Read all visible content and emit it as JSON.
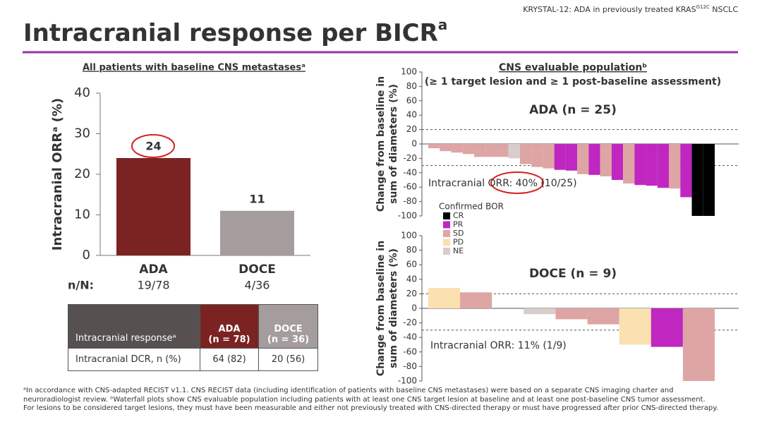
{
  "header": {
    "topline": [
      "KRYSTAL-12: ADA in previously treated KRAS",
      "G12C",
      " NSCLC"
    ],
    "title": "Intracranial response per BICR",
    "title_sup": "a"
  },
  "right_panel": {
    "heading": "CNS evaluable populationᵇ",
    "subheading": "(≥ 1 target lesion and ≥ 1 post-baseline assessment)"
  },
  "chart_data": [
    {
      "type": "bar",
      "title": "All patients with baseline CNS metastasesᵃ",
      "ylabel": "Intracranial ORRᵃ (%)",
      "categories": [
        "ADA",
        "DOCE"
      ],
      "values": [
        24,
        11
      ],
      "colors": [
        "#7b2323",
        "#a59d9d"
      ],
      "ylim": [
        0,
        40
      ],
      "yticks": [
        0,
        10,
        20,
        30,
        40
      ],
      "row_label": "n/N:",
      "row_values": [
        "19/78",
        "4/36"
      ]
    },
    {
      "type": "waterfall",
      "title": "ADA (n = 25)",
      "title_color": "#7b2323",
      "ylabel": [
        "Change from baseline in",
        "sum of diameters (%)"
      ],
      "ylim": [
        -100,
        100
      ],
      "yticks": [
        -100,
        -80,
        -60,
        -40,
        -20,
        0,
        20,
        40,
        60,
        80,
        100
      ],
      "reference_lines": [
        20,
        -30
      ],
      "values": [
        -6,
        -10,
        -12,
        -14,
        -18,
        -18,
        -18,
        -20,
        -28,
        -32,
        -34,
        -36,
        -37,
        -42,
        -43,
        -45,
        -50,
        -55,
        -57,
        -58,
        -61,
        -62,
        -74,
        -100,
        -100
      ],
      "bor": [
        "SD",
        "SD",
        "SD",
        "SD",
        "SD",
        "SD",
        "SD",
        "NE",
        "SD",
        "SD",
        "SD",
        "PR",
        "PR",
        "SD",
        "PR",
        "SD",
        "PR",
        "SD",
        "PR",
        "PR",
        "PR",
        "SD",
        "PR",
        "CR",
        "CR"
      ],
      "annotation": "Intracranial ORR: 40% (10/25)",
      "legend": {
        "title": "Confirmed BOR",
        "items": [
          {
            "name": "CR",
            "color": "#000000"
          },
          {
            "name": "PR",
            "color": "#c026c0"
          },
          {
            "name": "SD",
            "color": "#dea5a5"
          },
          {
            "name": "PD",
            "color": "#fbe0b0"
          },
          {
            "name": "NE",
            "color": "#d9cccc"
          }
        ]
      }
    },
    {
      "type": "waterfall",
      "title": "DOCE (n = 9)",
      "title_color": "#b5b0b0",
      "ylabel": [
        "Change from baseline in",
        "sum of diameters (%)"
      ],
      "ylim": [
        -100,
        100
      ],
      "yticks": [
        -100,
        -80,
        -60,
        -40,
        -20,
        0,
        20,
        40,
        60,
        80,
        100
      ],
      "reference_lines": [
        20,
        -30
      ],
      "values": [
        28,
        22,
        0,
        -8,
        -15,
        -22,
        -50,
        -53,
        -100
      ],
      "bor": [
        "PD",
        "SD",
        "SD",
        "NE",
        "SD",
        "SD",
        "PD",
        "PR",
        "SD"
      ],
      "annotation": "Intracranial ORR: 11% (1/9)"
    }
  ],
  "table": {
    "header": [
      "Intracranial responseᵃ",
      "ADA",
      "(n = 78)",
      "DOCE",
      "(n = 36)"
    ],
    "rows": [
      [
        "Intracranial DCR, n (%)",
        "64 (82)",
        "20 (56)"
      ]
    ]
  },
  "footnotes": [
    "ᵃIn accordance with CNS-adapted RECIST v1.1. CNS RECIST data (including identification of patients with baseline CNS metastases) were based on a separate CNS imaging charter and",
    "neuroradiologist review. ᵇWaterfall plots show CNS evaluable population including patients with at least one CNS target lesion at baseline and at least one post-baseline CNS tumor assessment.",
    "For lesions to be considered target lesions, they must have been measurable and either not previously treated with CNS-directed therapy or must have progressed after prior CNS-directed therapy."
  ]
}
